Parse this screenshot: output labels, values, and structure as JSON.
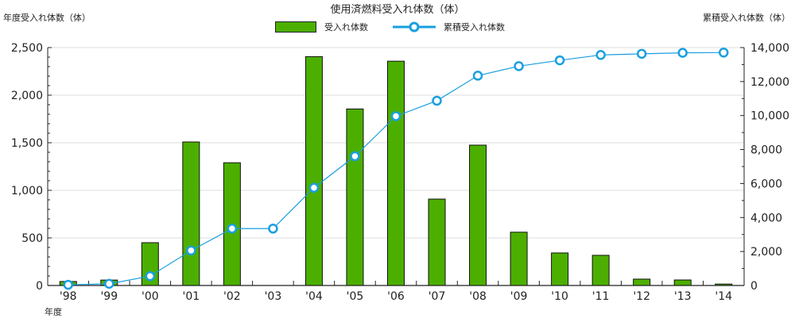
{
  "chart_data": {
    "type": "bar+line",
    "title": "使用済燃料受入れ体数（体）",
    "xlabel": "年度",
    "ylabel_left": "年度受入れ体数（体）",
    "ylabel_right": "累積受入れ体数（体）",
    "categories": [
      "'98",
      "'99",
      "'00",
      "'01",
      "'02",
      "'03",
      "'04",
      "'05",
      "'06",
      "'07",
      "'08",
      "'09",
      "'10",
      "'11",
      "'12",
      "'13",
      "'14"
    ],
    "series": [
      {
        "name": "受入れ体数",
        "type": "bar",
        "axis": "left",
        "color": "#4caf00",
        "values": [
          42,
          57,
          450,
          1508,
          1290,
          0,
          2405,
          1855,
          2357,
          908,
          1475,
          560,
          342,
          317,
          67,
          58,
          15
        ]
      },
      {
        "name": "累積受入れ体数",
        "type": "line",
        "axis": "right",
        "color": "#1a9fe0",
        "values": [
          42,
          99,
          549,
          2057,
          3347,
          3347,
          5752,
          7607,
          9964,
          10872,
          12347,
          12907,
          13249,
          13566,
          13633,
          13691,
          13706
        ]
      }
    ],
    "ylim_left": [
      0,
      2500
    ],
    "yticks_left": [
      "0",
      "500",
      "1,000",
      "1,500",
      "2,000",
      "2,500"
    ],
    "ylim_right": [
      0,
      14000
    ],
    "yticks_right": [
      "0",
      "2,000",
      "4,000",
      "6,000",
      "8,000",
      "10,000",
      "12,000",
      "14,000"
    ],
    "grid": true,
    "legend_position": "top-center"
  },
  "legend": {
    "bar_label": "受入れ体数",
    "line_label": "累積受入れ体数"
  }
}
